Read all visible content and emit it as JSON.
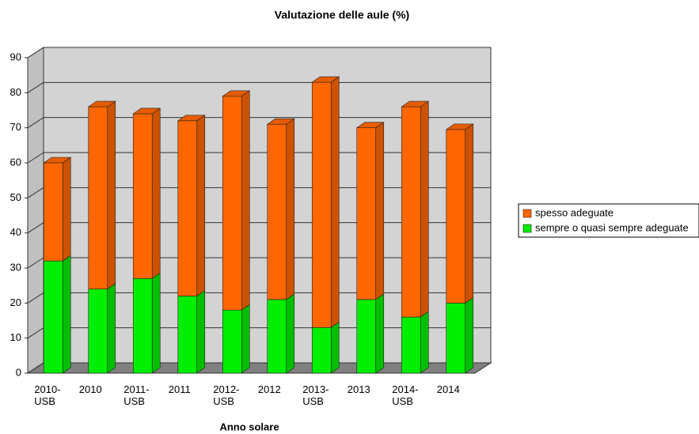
{
  "chart_data": {
    "type": "bar3d_stacked",
    "title": "Valutazione delle aule (%)",
    "x_label": "Anno solare",
    "categories": [
      "2010-USB",
      "2010",
      "2011-USB",
      "2011",
      "2012-USB",
      "2012",
      "2013-USB",
      "2013",
      "2014-USB",
      "2014"
    ],
    "series": [
      {
        "name": "sempre o quasi sempre adeguate",
        "color": "#00ee00",
        "values": [
          32,
          24,
          27,
          22,
          18,
          21,
          13,
          21,
          16,
          20
        ]
      },
      {
        "name": "spesso adeguate",
        "color": "#ff6600",
        "values": [
          28,
          52,
          47,
          50,
          61,
          50,
          70,
          49,
          60,
          49.5
        ]
      }
    ],
    "ylim": [
      0,
      90
    ],
    "yticks": [
      0,
      10,
      20,
      30,
      40,
      50,
      60,
      70,
      80,
      90
    ],
    "grid": true,
    "legend": "right"
  }
}
